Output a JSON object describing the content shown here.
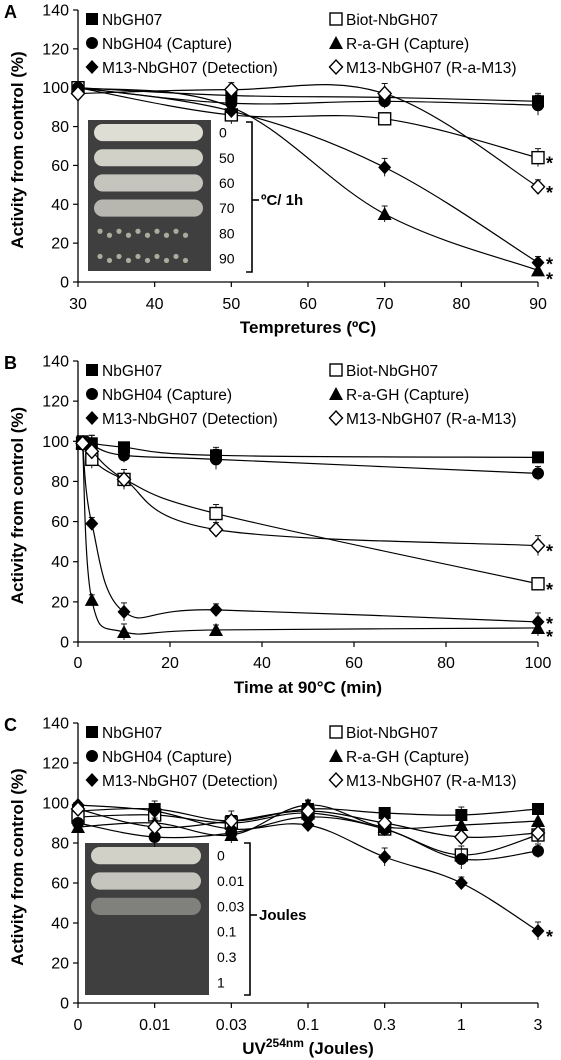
{
  "chart_data": [
    {
      "type": "line",
      "panel": "A",
      "xlabel": "Tempretures (ºC)",
      "ylabel": "Activity from control (%)",
      "x_ticks": [
        "30",
        "40",
        "50",
        "60",
        "70",
        "80",
        "90"
      ],
      "y_ticks": [
        "0",
        "20",
        "40",
        "60",
        "80",
        "100",
        "120",
        "140"
      ],
      "xlim": [
        30,
        90
      ],
      "ylim": [
        0,
        140
      ],
      "legend": [
        "NbGH07",
        "Biot-NbGH07",
        "NbGH04 (Capture)",
        "R-a-GH (Capture)",
        "M13-NbGH07 (Detection)",
        "M13-NbGH07 (R-a-M13)"
      ],
      "series": [
        {
          "name": "NbGH07",
          "marker": "square-filled",
          "x": [
            30,
            50,
            70,
            90
          ],
          "y": [
            100,
            96,
            95,
            93
          ]
        },
        {
          "name": "Biot-NbGH07",
          "marker": "square-open",
          "x": [
            30,
            50,
            70,
            90
          ],
          "y": [
            100,
            86,
            84,
            64
          ]
        },
        {
          "name": "NbGH04 (Capture)",
          "marker": "circle-filled",
          "x": [
            30,
            50,
            70,
            90
          ],
          "y": [
            100,
            92,
            93,
            91
          ]
        },
        {
          "name": "R-a-GH (Capture)",
          "marker": "triangle-filled",
          "x": [
            30,
            50,
            70,
            90
          ],
          "y": [
            100,
            90,
            35,
            6
          ]
        },
        {
          "name": "M13-NbGH07 (Detection)",
          "marker": "diamond-filled",
          "x": [
            30,
            50,
            70,
            90
          ],
          "y": [
            100,
            88,
            59,
            10
          ]
        },
        {
          "name": "M13-NbGH07 (R-a-M13)",
          "marker": "diamond-open",
          "x": [
            30,
            50,
            70,
            90
          ],
          "y": [
            97,
            99,
            97,
            49
          ]
        }
      ],
      "inset_labels": [
        "0",
        "50",
        "60",
        "70",
        "80",
        "90"
      ],
      "inset_title": "ºC/ 1h",
      "significance": [
        "*",
        "*",
        "*",
        "*"
      ]
    },
    {
      "type": "line",
      "panel": "B",
      "xlabel": "Time at 90°C (min)",
      "ylabel": "Activity from control (%)",
      "x_ticks": [
        "0",
        "20",
        "40",
        "60",
        "80",
        "100"
      ],
      "y_ticks": [
        "0",
        "20",
        "40",
        "60",
        "80",
        "100",
        "120",
        "140"
      ],
      "xlim": [
        0,
        100
      ],
      "ylim": [
        0,
        140
      ],
      "legend": [
        "NbGH07",
        "Biot-NbGH07",
        "NbGH04 (Capture)",
        "R-a-GH (Capture)",
        "M13-NbGH07 (Detection)",
        "M13-NbGH07 (R-a-M13)"
      ],
      "series": [
        {
          "name": "NbGH07",
          "marker": "square-filled",
          "x": [
            1,
            3,
            10,
            30,
            100
          ],
          "y": [
            100,
            99,
            97,
            93,
            92
          ]
        },
        {
          "name": "Biot-NbGH07",
          "marker": "square-open",
          "x": [
            1,
            3,
            10,
            30,
            100
          ],
          "y": [
            99,
            91,
            81,
            64,
            29
          ]
        },
        {
          "name": "NbGH04 (Capture)",
          "marker": "circle-filled",
          "x": [
            1,
            3,
            10,
            30,
            100
          ],
          "y": [
            100,
            98,
            93,
            91,
            84
          ]
        },
        {
          "name": "R-a-GH (Capture)",
          "marker": "triangle-filled",
          "x": [
            1,
            3,
            10,
            30,
            100
          ],
          "y": [
            99,
            21,
            5,
            6,
            7
          ]
        },
        {
          "name": "M13-NbGH07 (Detection)",
          "marker": "diamond-filled",
          "x": [
            1,
            3,
            10,
            30,
            100
          ],
          "y": [
            99,
            59,
            15,
            16,
            10
          ]
        },
        {
          "name": "M13-NbGH07 (R-a-M13)",
          "marker": "diamond-open",
          "x": [
            1,
            3,
            10,
            30,
            100
          ],
          "y": [
            99,
            95,
            81,
            56,
            48
          ]
        }
      ],
      "significance": [
        "*",
        "*",
        "*",
        "*"
      ]
    },
    {
      "type": "line",
      "panel": "C",
      "xlabel_main": "UV",
      "xlabel_super": "254nm",
      "xlabel_suffix": " (Joules)",
      "ylabel": "Activity from control (%)",
      "categories": [
        "0",
        "0.01",
        "0.03",
        "0.1",
        "0.3",
        "1",
        "3"
      ],
      "y_ticks": [
        "0",
        "20",
        "40",
        "60",
        "80",
        "100",
        "120",
        "140"
      ],
      "ylim": [
        0,
        140
      ],
      "legend": [
        "NbGH07",
        "Biot-NbGH07",
        "NbGH04 (Capture)",
        "R-a-GH (Capture)",
        "M13-NbGH07 (Detection)",
        "M13-NbGH07 (R-a-M13)"
      ],
      "series": [
        {
          "name": "NbGH07",
          "marker": "square-filled",
          "values": [
            96,
            97,
            91,
            97,
            95,
            94,
            97
          ]
        },
        {
          "name": "Biot-NbGH07",
          "marker": "square-open",
          "values": [
            93,
            94,
            90,
            95,
            87,
            74,
            84
          ]
        },
        {
          "name": "NbGH04 (Capture)",
          "marker": "circle-filled",
          "values": [
            90,
            83,
            85,
            93,
            87,
            72,
            76
          ]
        },
        {
          "name": "R-a-GH (Capture)",
          "marker": "triangle-filled",
          "values": [
            88,
            90,
            84,
            99,
            88,
            89,
            91
          ]
        },
        {
          "name": "M13-NbGH07 (Detection)",
          "marker": "diamond-filled",
          "values": [
            99,
            96,
            87,
            89,
            73,
            60,
            36
          ]
        },
        {
          "name": "M13-NbGH07 (R-a-M13)",
          "marker": "diamond-open",
          "values": [
            97,
            88,
            91,
            96,
            90,
            83,
            85
          ]
        }
      ],
      "inset_labels": [
        "0",
        "0.01",
        "0.03",
        "0.1",
        "0.3",
        "1"
      ],
      "inset_title": "Joules",
      "significance": [
        "*"
      ]
    }
  ]
}
